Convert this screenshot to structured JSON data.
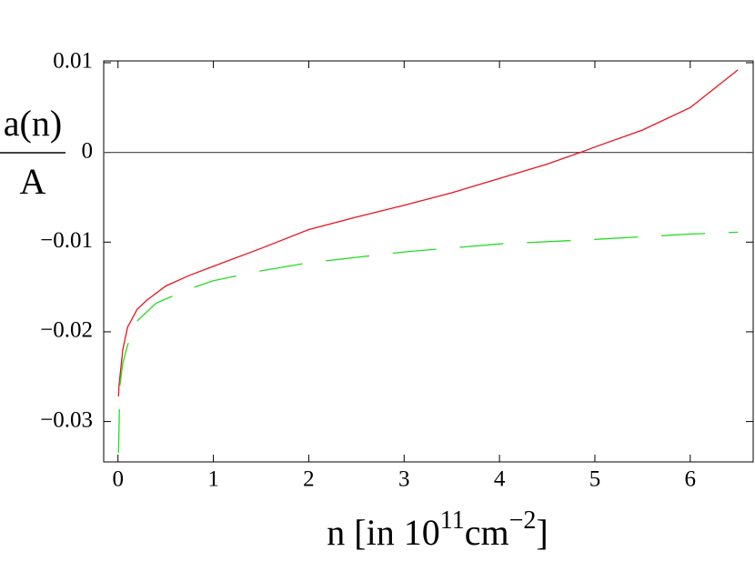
{
  "chart_data": {
    "type": "line",
    "ylabel_numerator": "a(n)",
    "ylabel_denominator": "A",
    "xlabel": [
      {
        "text": "n [in 10"
      },
      {
        "text": "11",
        "sup": true
      },
      {
        "text": "cm"
      },
      {
        "text": "−2",
        "sup": true
      },
      {
        "text": "]"
      }
    ],
    "xlim": [
      -0.15,
      6.66
    ],
    "ylim": [
      -0.0345,
      0.0102
    ],
    "xticks": [
      0,
      1,
      2,
      3,
      4,
      5,
      6
    ],
    "yticks": [
      0.01,
      0,
      {
        "value": -0.01,
        "label": "−0.01"
      },
      {
        "value": -0.02,
        "label": "−0.02"
      },
      {
        "value": -0.03,
        "label": "−0.03"
      }
    ],
    "hlines": [
      0
    ],
    "series": [
      {
        "color": "#e8141c",
        "style": "solid",
        "x": [
          0.005,
          0.01,
          0.05,
          0.1,
          0.2,
          0.3,
          0.5,
          0.75,
          1,
          1.5,
          2,
          2.5,
          3,
          3.5,
          4,
          4.5,
          4.85,
          5,
          5.5,
          6,
          6.5
        ],
        "values": [
          -0.0272,
          -0.026,
          -0.022,
          -0.0195,
          -0.0175,
          -0.0165,
          -0.0149,
          -0.0137,
          -0.0127,
          -0.0107,
          -0.0086,
          -0.0072,
          -0.0059,
          -0.0045,
          -0.0029,
          -0.0013,
          0,
          0.0006,
          0.0025,
          0.005,
          0.0092
        ]
      },
      {
        "color": "#22dd22",
        "style": "dashed",
        "x": [
          0.005,
          0.02,
          0.05,
          0.1,
          0.2,
          0.4,
          0.75,
          1,
          1.5,
          2,
          3,
          4,
          5,
          6,
          6.5
        ],
        "values": [
          -0.0335,
          -0.026,
          -0.0235,
          -0.0215,
          -0.0188,
          -0.0168,
          -0.0152,
          -0.0143,
          -0.0132,
          -0.0123,
          -0.0111,
          -0.0102,
          -0.0097,
          -0.0091,
          -0.0089
        ]
      }
    ]
  }
}
